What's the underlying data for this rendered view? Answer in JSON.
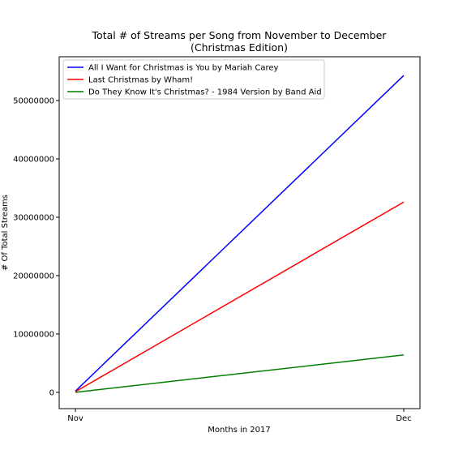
{
  "chart_data": {
    "type": "line",
    "title_line1": "Total # of Streams per Song from November to December",
    "title_line2": "(Christmas Edition)",
    "xlabel": "Months in 2017",
    "ylabel": "# Of Total Streams",
    "categories": [
      "Nov",
      "Dec"
    ],
    "ylim": [
      -2800000,
      57500000
    ],
    "yticks": [
      0,
      10000000,
      20000000,
      30000000,
      40000000,
      50000000
    ],
    "ytick_labels": [
      "0",
      "10000000",
      "20000000",
      "30000000",
      "40000000",
      "50000000"
    ],
    "legend_position": "upper-left",
    "grid": false,
    "series": [
      {
        "name": "All I Want for Christmas is You by Mariah Carey",
        "color": "#0000ff",
        "values": [
          200000,
          54300000
        ]
      },
      {
        "name": "Last Christmas by Wham!",
        "color": "#ff0000",
        "values": [
          100000,
          32600000
        ]
      },
      {
        "name": "Do They Know It's Christmas? - 1984 Version by Band Aid",
        "color": "#008000",
        "values": [
          0,
          6400000
        ]
      }
    ]
  }
}
